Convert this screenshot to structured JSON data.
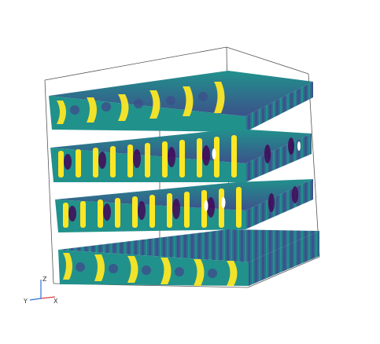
{
  "scene": {
    "background": "#ffffff",
    "colormap": [
      "#440154",
      "#3b528b",
      "#21918c",
      "#5ec962",
      "#fde725"
    ],
    "frame_color": "#555555",
    "layer_count": 4
  },
  "axes_triad": {
    "z_label": "Z",
    "y_label": "Y",
    "x_label": "X",
    "colors": {
      "z": "#2a6fdb",
      "y": "#2a6fdb",
      "x": "#d94040"
    }
  }
}
